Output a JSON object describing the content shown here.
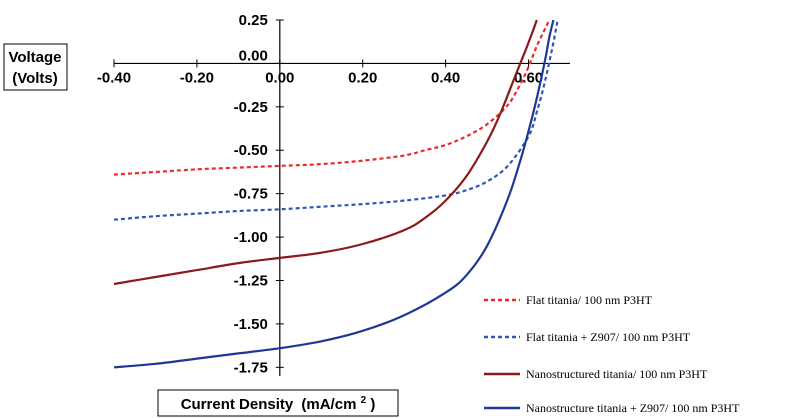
{
  "chart_data": {
    "type": "line",
    "x_label": "Voltage (Volts)",
    "x_label_lines": [
      "Voltage",
      "(Volts)"
    ],
    "y_label_main": "Current Density",
    "y_label_unit": "(mA/cm",
    "y_label_sup": "2",
    "y_label_close": ")",
    "xlim": [
      -0.4,
      0.7
    ],
    "ylim": [
      -1.8,
      0.25
    ],
    "x_ticks": [
      -0.4,
      -0.2,
      0.0,
      0.2,
      0.4,
      0.6
    ],
    "x_tick_labels": [
      "-0.40",
      "-0.20",
      "0.00",
      "0.20",
      "0.40",
      "0.60"
    ],
    "y_ticks": [
      0.25,
      0.0,
      -0.25,
      -0.5,
      -0.75,
      -1.0,
      -1.25,
      -1.5,
      -1.75
    ],
    "y_tick_labels": [
      "0.25",
      "0.00",
      "-0.25",
      "-0.50",
      "-0.75",
      "-1.00",
      "-1.25",
      "-1.50",
      "-1.75"
    ],
    "grid": false,
    "legend_position": "bottom-right",
    "series": [
      {
        "name": "Flat titania/ 100 nm P3HT",
        "color": "#ee2a2a",
        "dash": "dashed",
        "x": [
          -0.4,
          -0.3,
          -0.2,
          -0.1,
          0.0,
          0.1,
          0.2,
          0.3,
          0.35,
          0.4,
          0.45,
          0.5,
          0.55,
          0.58,
          0.6,
          0.62,
          0.64,
          0.65
        ],
        "y": [
          -0.64,
          -0.625,
          -0.61,
          -0.6,
          -0.59,
          -0.58,
          -0.56,
          -0.53,
          -0.5,
          -0.47,
          -0.42,
          -0.35,
          -0.24,
          -0.12,
          -0.02,
          0.1,
          0.2,
          0.25
        ]
      },
      {
        "name": "Flat titania + Z907/ 100 nm P3HT",
        "color": "#2f58b2",
        "dash": "dashed",
        "x": [
          -0.4,
          -0.3,
          -0.2,
          -0.1,
          0.0,
          0.1,
          0.2,
          0.3,
          0.4,
          0.45,
          0.5,
          0.55,
          0.6,
          0.62,
          0.64,
          0.66,
          0.67
        ],
        "y": [
          -0.9,
          -0.88,
          -0.865,
          -0.85,
          -0.84,
          -0.825,
          -0.81,
          -0.79,
          -0.76,
          -0.73,
          -0.68,
          -0.59,
          -0.42,
          -0.28,
          -0.1,
          0.12,
          0.25
        ]
      },
      {
        "name": "Nanostructured titania/ 100 nm P3HT",
        "color": "#8b1a1a",
        "dash": "solid",
        "x": [
          -0.4,
          -0.3,
          -0.2,
          -0.1,
          0.0,
          0.1,
          0.2,
          0.3,
          0.35,
          0.4,
          0.45,
          0.5,
          0.53,
          0.56,
          0.58,
          0.6,
          0.62
        ],
        "y": [
          -1.27,
          -1.23,
          -1.19,
          -1.15,
          -1.12,
          -1.09,
          -1.04,
          -0.96,
          -0.89,
          -0.79,
          -0.65,
          -0.45,
          -0.3,
          -0.12,
          0.0,
          0.12,
          0.25
        ]
      },
      {
        "name": "Nanostructure titania + Z907/ 100 nm P3HT",
        "color": "#1f3896",
        "dash": "solid",
        "x": [
          -0.4,
          -0.3,
          -0.2,
          -0.1,
          0.0,
          0.1,
          0.2,
          0.3,
          0.4,
          0.45,
          0.5,
          0.55,
          0.58,
          0.6,
          0.62,
          0.64,
          0.65,
          0.66
        ],
        "y": [
          -1.75,
          -1.73,
          -1.7,
          -1.67,
          -1.64,
          -1.6,
          -1.54,
          -1.45,
          -1.32,
          -1.22,
          -1.05,
          -0.78,
          -0.56,
          -0.39,
          -0.2,
          0.02,
          0.15,
          0.25
        ]
      }
    ]
  }
}
